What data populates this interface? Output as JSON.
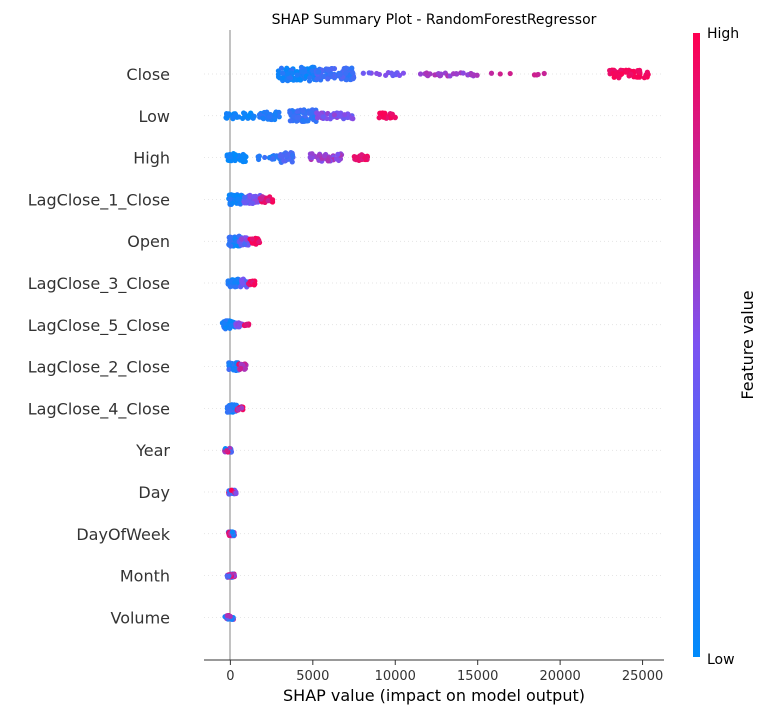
{
  "chart_data": {
    "type": "scatter",
    "title": "SHAP Summary Plot - RandomForestRegressor",
    "xlabel": "SHAP value (impact on model output)",
    "xlim": [
      -1600,
      26300
    ],
    "xticks": [
      0,
      5000,
      10000,
      15000,
      20000,
      25000
    ],
    "colorbar": {
      "label": "Feature value",
      "high_label": "High",
      "low_label": "Low",
      "low_color": "#008bfb",
      "mid_color": "#7c52f2",
      "high_color": "#ff0051"
    },
    "features": [
      {
        "name": "Close",
        "clusters": [
          {
            "x": [
              2900,
              5200
            ],
            "v": [
              0.0,
              0.2
            ],
            "n": 95,
            "w": 7
          },
          {
            "x": [
              5200,
              7500
            ],
            "v": [
              0.15,
              0.35
            ],
            "n": 80,
            "w": 6
          },
          {
            "x": [
              8000,
              10500
            ],
            "v": [
              0.4,
              0.55
            ],
            "n": 14,
            "w": 2
          },
          {
            "x": [
              11500,
              15000
            ],
            "v": [
              0.55,
              0.7
            ],
            "n": 32,
            "w": 2
          },
          {
            "x": [
              15500,
              19500
            ],
            "v": [
              0.75,
              0.85
            ],
            "n": 7,
            "w": 1
          },
          {
            "x": [
              23000,
              25500
            ],
            "v": [
              0.92,
              1.0
            ],
            "n": 45,
            "w": 4
          }
        ]
      },
      {
        "name": "Low",
        "clusters": [
          {
            "x": [
              -300,
              1500
            ],
            "v": [
              0.0,
              0.1
            ],
            "n": 30,
            "w": 3
          },
          {
            "x": [
              1700,
              3000
            ],
            "v": [
              0.05,
              0.2
            ],
            "n": 35,
            "w": 4
          },
          {
            "x": [
              3600,
              5300
            ],
            "v": [
              0.15,
              0.3
            ],
            "n": 70,
            "w": 6
          },
          {
            "x": [
              5200,
              7500
            ],
            "v": [
              0.4,
              0.6
            ],
            "n": 40,
            "w": 3
          },
          {
            "x": [
              9000,
              10000
            ],
            "v": [
              0.85,
              1.0
            ],
            "n": 25,
            "w": 3
          }
        ]
      },
      {
        "name": "High",
        "clusters": [
          {
            "x": [
              -200,
              1000
            ],
            "v": [
              0.0,
              0.1
            ],
            "n": 45,
            "w": 4
          },
          {
            "x": [
              1500,
              3000
            ],
            "v": [
              0.1,
              0.25
            ],
            "n": 15,
            "w": 2
          },
          {
            "x": [
              3000,
              3800
            ],
            "v": [
              0.2,
              0.35
            ],
            "n": 35,
            "w": 5
          },
          {
            "x": [
              4800,
              6800
            ],
            "v": [
              0.5,
              0.7
            ],
            "n": 38,
            "w": 4
          },
          {
            "x": [
              7500,
              8400
            ],
            "v": [
              0.85,
              1.0
            ],
            "n": 25,
            "w": 3
          }
        ]
      },
      {
        "name": "LagClose_1_Close",
        "clusters": [
          {
            "x": [
              -100,
              800
            ],
            "v": [
              0.0,
              0.2
            ],
            "n": 45,
            "w": 5
          },
          {
            "x": [
              800,
              1800
            ],
            "v": [
              0.3,
              0.55
            ],
            "n": 35,
            "w": 4
          },
          {
            "x": [
              1800,
              2600
            ],
            "v": [
              0.75,
              1.0
            ],
            "n": 20,
            "w": 3
          }
        ]
      },
      {
        "name": "Open",
        "clusters": [
          {
            "x": [
              -100,
              700
            ],
            "v": [
              0.0,
              0.25
            ],
            "n": 50,
            "w": 5
          },
          {
            "x": [
              500,
              1100
            ],
            "v": [
              0.3,
              0.6
            ],
            "n": 30,
            "w": 4
          },
          {
            "x": [
              1100,
              1800
            ],
            "v": [
              0.85,
              1.0
            ],
            "n": 20,
            "w": 3
          }
        ]
      },
      {
        "name": "LagClose_3_Close",
        "clusters": [
          {
            "x": [
              -200,
              500
            ],
            "v": [
              0.0,
              0.2
            ],
            "n": 40,
            "w": 4
          },
          {
            "x": [
              600,
              1100
            ],
            "v": [
              0.3,
              0.5
            ],
            "n": 25,
            "w": 4
          },
          {
            "x": [
              1100,
              1500
            ],
            "v": [
              0.85,
              1.0
            ],
            "n": 12,
            "w": 2
          }
        ]
      },
      {
        "name": "LagClose_5_Close",
        "clusters": [
          {
            "x": [
              -500,
              300
            ],
            "v": [
              0.0,
              0.2
            ],
            "n": 45,
            "w": 4
          },
          {
            "x": [
              300,
              800
            ],
            "v": [
              0.4,
              0.6
            ],
            "n": 18,
            "w": 2
          },
          {
            "x": [
              800,
              1200
            ],
            "v": [
              0.85,
              1.0
            ],
            "n": 8,
            "w": 1
          }
        ]
      },
      {
        "name": "LagClose_2_Close",
        "clusters": [
          {
            "x": [
              -100,
              500
            ],
            "v": [
              0.0,
              0.3
            ],
            "n": 40,
            "w": 4
          },
          {
            "x": [
              500,
              950
            ],
            "v": [
              0.6,
              1.0
            ],
            "n": 20,
            "w": 3
          }
        ]
      },
      {
        "name": "LagClose_4_Close",
        "clusters": [
          {
            "x": [
              -200,
              400
            ],
            "v": [
              0.0,
              0.3
            ],
            "n": 40,
            "w": 4
          },
          {
            "x": [
              400,
              800
            ],
            "v": [
              0.6,
              1.0
            ],
            "n": 12,
            "w": 2
          }
        ]
      },
      {
        "name": "Year",
        "clusters": [
          {
            "x": [
              -350,
              80
            ],
            "v": [
              0.0,
              1.0
            ],
            "n": 30,
            "w": 2
          }
        ]
      },
      {
        "name": "Day",
        "clusters": [
          {
            "x": [
              -150,
              350
            ],
            "v": [
              0.0,
              1.0
            ],
            "n": 32,
            "w": 2
          }
        ]
      },
      {
        "name": "DayOfWeek",
        "clusters": [
          {
            "x": [
              -150,
              250
            ],
            "v": [
              0.0,
              1.0
            ],
            "n": 30,
            "w": 2
          }
        ]
      },
      {
        "name": "Month",
        "clusters": [
          {
            "x": [
              -200,
              250
            ],
            "v": [
              0.0,
              1.0
            ],
            "n": 30,
            "w": 2
          }
        ]
      },
      {
        "name": "Volume",
        "clusters": [
          {
            "x": [
              -350,
              200
            ],
            "v": [
              0.0,
              1.0
            ],
            "n": 28,
            "w": 2
          }
        ]
      }
    ]
  }
}
